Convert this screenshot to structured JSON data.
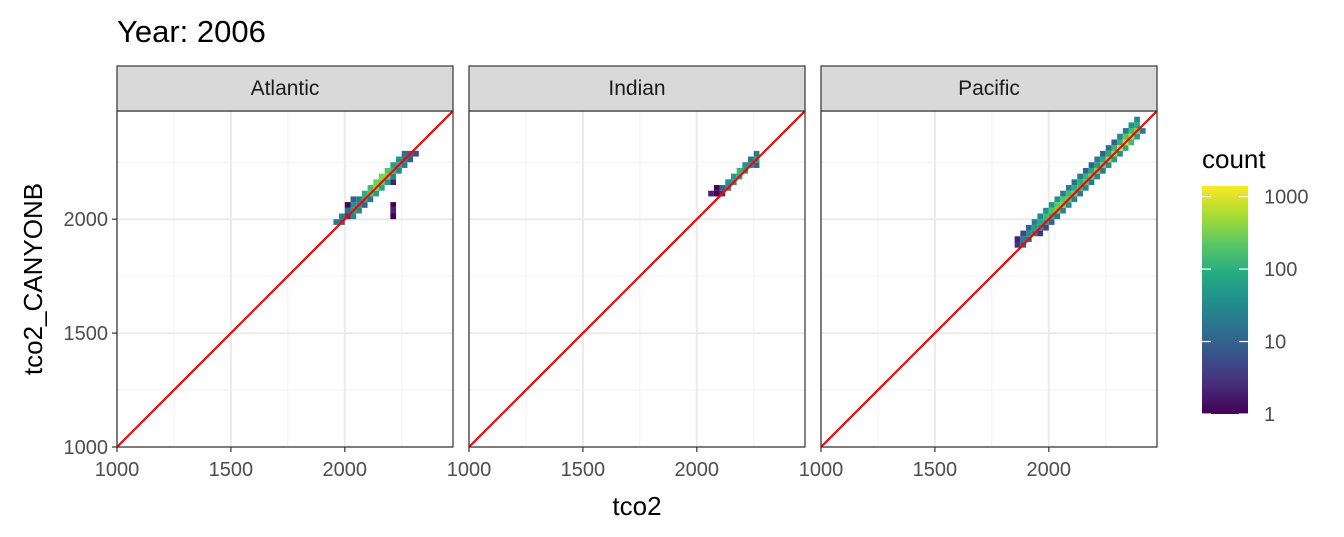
{
  "title": "Year: 2006",
  "chart_data": {
    "type": "heatmap",
    "xlabel": "tco2",
    "ylabel": "tco2_CANYONB",
    "xlim": [
      1000,
      2475
    ],
    "ylim": [
      1000,
      2475
    ],
    "x_ticks": [
      "1000",
      "1500",
      "2000"
    ],
    "y_ticks": [
      "1000",
      "1500",
      "2000"
    ],
    "bin_width": 25,
    "reference_line": {
      "slope": 1,
      "intercept": 0,
      "color": "#ff0000"
    },
    "fill_scale": "log10",
    "panels": [
      {
        "label": "Atlantic",
        "cells": [
          [
            1950,
            1975,
            20
          ],
          [
            1975,
            1975,
            10
          ],
          [
            1975,
            2000,
            20
          ],
          [
            2000,
            2000,
            3
          ],
          [
            2025,
            2000,
            30
          ],
          [
            2000,
            2025,
            15
          ],
          [
            2025,
            2025,
            60
          ],
          [
            2050,
            2025,
            30
          ],
          [
            2000,
            2050,
            1
          ],
          [
            2025,
            2050,
            40
          ],
          [
            2050,
            2050,
            30
          ],
          [
            2075,
            2050,
            10
          ],
          [
            2025,
            2075,
            10
          ],
          [
            2050,
            2075,
            20
          ],
          [
            2075,
            2075,
            80
          ],
          [
            2100,
            2075,
            20
          ],
          [
            2075,
            2100,
            100
          ],
          [
            2100,
            2100,
            200
          ],
          [
            2125,
            2100,
            60
          ],
          [
            2100,
            2125,
            150
          ],
          [
            2125,
            2125,
            400
          ],
          [
            2150,
            2125,
            80
          ],
          [
            2125,
            2150,
            300
          ],
          [
            2150,
            2150,
            250
          ],
          [
            2175,
            2150,
            50
          ],
          [
            2200,
            2150,
            2
          ],
          [
            2150,
            2175,
            350
          ],
          [
            2175,
            2175,
            300
          ],
          [
            2200,
            2175,
            30
          ],
          [
            2175,
            2200,
            200
          ],
          [
            2200,
            2200,
            150
          ],
          [
            2225,
            2200,
            30
          ],
          [
            2200,
            2225,
            60
          ],
          [
            2225,
            2225,
            80
          ],
          [
            2250,
            2225,
            20
          ],
          [
            2225,
            2250,
            40
          ],
          [
            2250,
            2250,
            30
          ],
          [
            2275,
            2250,
            10
          ],
          [
            2250,
            2275,
            15
          ],
          [
            2275,
            2275,
            10
          ],
          [
            2300,
            2275,
            5
          ],
          [
            2200,
            2050,
            1
          ],
          [
            2200,
            2025,
            2
          ],
          [
            2200,
            2000,
            1
          ]
        ]
      },
      {
        "label": "Indian",
        "cells": [
          [
            2050,
            2100,
            2
          ],
          [
            2075,
            2100,
            1
          ],
          [
            2100,
            2100,
            3
          ],
          [
            2075,
            2125,
            1
          ],
          [
            2100,
            2125,
            10
          ],
          [
            2125,
            2125,
            30
          ],
          [
            2125,
            2150,
            40
          ],
          [
            2150,
            2150,
            50
          ],
          [
            2150,
            2175,
            60
          ],
          [
            2175,
            2175,
            80
          ],
          [
            2175,
            2200,
            120
          ],
          [
            2200,
            2200,
            50
          ],
          [
            2200,
            2225,
            40
          ],
          [
            2225,
            2225,
            30
          ],
          [
            2250,
            2225,
            10
          ],
          [
            2225,
            2250,
            15
          ],
          [
            2250,
            2250,
            60
          ],
          [
            2250,
            2275,
            20
          ]
        ]
      },
      {
        "label": "Pacific",
        "cells": [
          [
            1850,
            1875,
            3
          ],
          [
            1875,
            1875,
            10
          ],
          [
            1850,
            1900,
            2
          ],
          [
            1875,
            1900,
            20
          ],
          [
            1900,
            1900,
            15
          ],
          [
            1875,
            1925,
            5
          ],
          [
            1900,
            1925,
            40
          ],
          [
            1925,
            1925,
            30
          ],
          [
            1950,
            1925,
            3
          ],
          [
            1900,
            1950,
            10
          ],
          [
            1925,
            1950,
            60
          ],
          [
            1950,
            1950,
            50
          ],
          [
            1975,
            1950,
            5
          ],
          [
            1925,
            1975,
            20
          ],
          [
            1950,
            1975,
            80
          ],
          [
            1975,
            1975,
            60
          ],
          [
            2000,
            1975,
            10
          ],
          [
            1950,
            2000,
            30
          ],
          [
            1975,
            2000,
            150
          ],
          [
            2000,
            2000,
            100
          ],
          [
            2025,
            2000,
            20
          ],
          [
            1975,
            2025,
            40
          ],
          [
            2000,
            2025,
            200
          ],
          [
            2025,
            2025,
            300
          ],
          [
            2050,
            2025,
            30
          ],
          [
            2000,
            2050,
            50
          ],
          [
            2025,
            2050,
            250
          ],
          [
            2050,
            2050,
            300
          ],
          [
            2075,
            2050,
            40
          ],
          [
            2025,
            2075,
            40
          ],
          [
            2050,
            2075,
            200
          ],
          [
            2075,
            2075,
            200
          ],
          [
            2100,
            2075,
            30
          ],
          [
            2050,
            2100,
            20
          ],
          [
            2075,
            2100,
            150
          ],
          [
            2100,
            2100,
            250
          ],
          [
            2125,
            2100,
            20
          ],
          [
            2075,
            2125,
            20
          ],
          [
            2100,
            2125,
            100
          ],
          [
            2125,
            2125,
            150
          ],
          [
            2150,
            2125,
            30
          ],
          [
            2100,
            2150,
            15
          ],
          [
            2125,
            2150,
            100
          ],
          [
            2150,
            2150,
            200
          ],
          [
            2175,
            2150,
            20
          ],
          [
            2125,
            2175,
            20
          ],
          [
            2150,
            2175,
            120
          ],
          [
            2175,
            2175,
            250
          ],
          [
            2200,
            2175,
            30
          ],
          [
            2150,
            2200,
            10
          ],
          [
            2175,
            2200,
            80
          ],
          [
            2200,
            2200,
            300
          ],
          [
            2225,
            2200,
            20
          ],
          [
            2175,
            2225,
            10
          ],
          [
            2200,
            2225,
            60
          ],
          [
            2225,
            2225,
            250
          ],
          [
            2250,
            2225,
            40
          ],
          [
            2200,
            2250,
            20
          ],
          [
            2225,
            2250,
            80
          ],
          [
            2250,
            2250,
            400
          ],
          [
            2275,
            2250,
            60
          ],
          [
            2225,
            2275,
            10
          ],
          [
            2250,
            2275,
            80
          ],
          [
            2275,
            2275,
            500
          ],
          [
            2300,
            2275,
            40
          ],
          [
            2250,
            2300,
            15
          ],
          [
            2275,
            2300,
            120
          ],
          [
            2300,
            2300,
            800
          ],
          [
            2325,
            2300,
            80
          ],
          [
            2275,
            2325,
            10
          ],
          [
            2300,
            2325,
            100
          ],
          [
            2325,
            2325,
            900
          ],
          [
            2350,
            2325,
            150
          ],
          [
            2300,
            2350,
            30
          ],
          [
            2325,
            2350,
            200
          ],
          [
            2350,
            2350,
            600
          ],
          [
            2375,
            2350,
            60
          ],
          [
            2325,
            2375,
            20
          ],
          [
            2350,
            2375,
            150
          ],
          [
            2375,
            2375,
            300
          ],
          [
            2400,
            2375,
            20
          ],
          [
            2350,
            2400,
            40
          ],
          [
            2375,
            2400,
            80
          ],
          [
            2375,
            2425,
            30
          ]
        ]
      }
    ],
    "legend": {
      "title": "count",
      "labels": [
        "1000",
        "100",
        "10",
        "1"
      ],
      "values": [
        1000,
        100,
        10,
        1
      ]
    }
  }
}
